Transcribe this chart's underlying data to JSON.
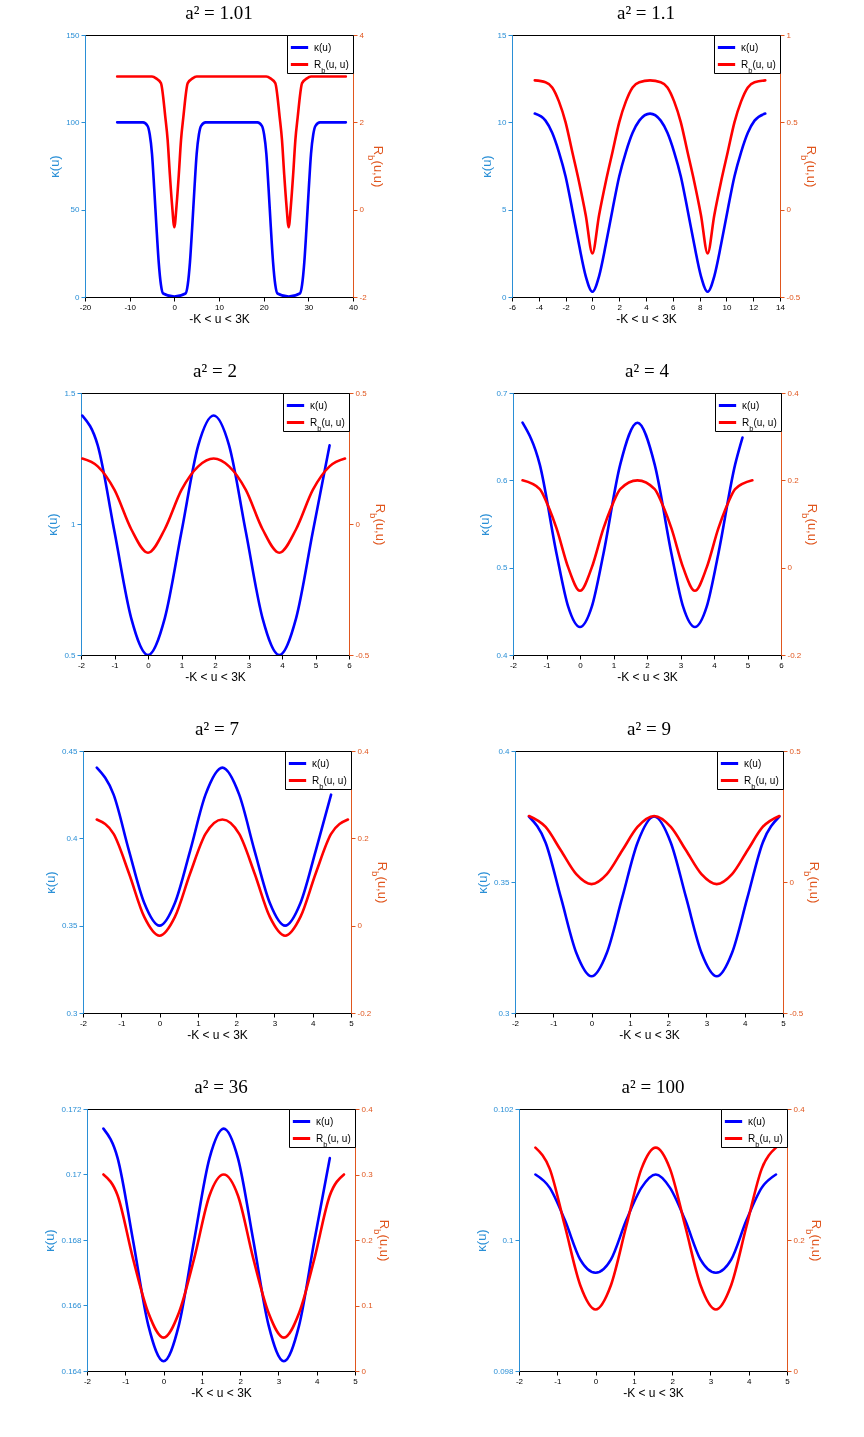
{
  "chart_data": [
    {
      "type": "line",
      "title": "a² = 1.01",
      "xlabel": "-K < u < 3K",
      "ylabel": "κ(u)",
      "y2label": "R$_{b}$(u,u)",
      "xlim": [
        -20,
        40
      ],
      "xticks": [
        -20,
        -10,
        0,
        10,
        20,
        30,
        40
      ],
      "ylim": [
        0,
        150
      ],
      "yticks": [
        0,
        50,
        100,
        150
      ],
      "y2lim": [
        -2,
        4
      ],
      "y2ticks": [
        -2,
        0,
        2,
        4
      ],
      "legend": "top right",
      "series": [
        {
          "name": "κ(u)",
          "color": "#0000ff",
          "x": [
            -12.8,
            -7,
            -6,
            -5.5,
            -5,
            -4.5,
            -4,
            -3.5,
            -3,
            -2.5,
            0,
            2.5,
            3,
            3.5,
            4,
            4.5,
            5,
            5.5,
            6,
            7,
            12.8,
            18.6,
            19.6,
            20.1,
            20.6,
            21.1,
            21.6,
            22.1,
            22.6,
            23.1,
            25.6,
            28.1,
            28.6,
            29.1,
            29.6,
            30.1,
            30.6,
            31.1,
            31.6,
            32.6,
            38.4
          ],
          "values": [
            100,
            100,
            98,
            93,
            82,
            62,
            40,
            20,
            7,
            2,
            0.2,
            2,
            7,
            20,
            40,
            62,
            82,
            93,
            98,
            100,
            100,
            100,
            98,
            93,
            82,
            62,
            40,
            20,
            7,
            2,
            0.2,
            2,
            7,
            20,
            40,
            62,
            82,
            93,
            98,
            100,
            100
          ]
        },
        {
          "name": "R$_{b}$(u, u)",
          "color": "#ff0000",
          "axis": "y2",
          "x": [
            -12.8,
            -5,
            -4,
            -3,
            -2,
            -1.5,
            -1,
            -0.5,
            0,
            0.5,
            1,
            1.5,
            2,
            3,
            4,
            5,
            12.8,
            20.6,
            21.6,
            22.6,
            23.6,
            24.1,
            24.6,
            25.1,
            25.6,
            26.1,
            26.6,
            27.1,
            27.6,
            28.6,
            29.6,
            30.6,
            38.4
          ],
          "values": [
            3.05,
            3.05,
            3.0,
            2.9,
            2.1,
            1.6,
            0.8,
            0.1,
            -0.4,
            0.1,
            0.8,
            1.6,
            2.1,
            2.9,
            3.0,
            3.05,
            3.05,
            3.05,
            3.0,
            2.9,
            2.1,
            1.6,
            0.8,
            0.1,
            -0.4,
            0.1,
            0.8,
            1.6,
            2.1,
            2.9,
            3.0,
            3.05,
            3.05
          ]
        }
      ]
    },
    {
      "type": "line",
      "title": "a² = 1.1",
      "xlabel": "-K < u < 3K",
      "ylabel": "κ(u)",
      "y2label": "R$_{b}$(u,u)",
      "xlim": [
        -6,
        14
      ],
      "xticks": [
        -6,
        -4,
        -2,
        0,
        2,
        4,
        6,
        8,
        10,
        12,
        14
      ],
      "ylim": [
        0,
        15
      ],
      "yticks": [
        0,
        5,
        10,
        15
      ],
      "y2lim": [
        -0.5,
        1
      ],
      "y2ticks": [
        -0.5,
        0,
        0.5,
        1
      ],
      "legend": "top right",
      "series": [
        {
          "name": "κ(u)",
          "color": "#0000ff",
          "x": [
            -4.3,
            -3.5,
            -3,
            -2.5,
            -2,
            -1.5,
            -1,
            -0.5,
            0,
            0.5,
            1,
            1.5,
            2,
            2.5,
            3,
            3.5,
            4.3,
            5.1,
            5.6,
            6.1,
            6.6,
            7.1,
            7.6,
            8.1,
            8.6,
            9.1,
            9.6,
            10.1,
            10.6,
            11.1,
            11.6,
            12.1,
            12.9
          ],
          "values": [
            10.5,
            10.1,
            9.4,
            8.3,
            6.9,
            5.0,
            3.0,
            1.2,
            0.3,
            1.2,
            3.0,
            5.0,
            6.9,
            8.3,
            9.4,
            10.1,
            10.5,
            10.1,
            9.4,
            8.3,
            6.9,
            5.0,
            3.0,
            1.2,
            0.3,
            1.2,
            3.0,
            5.0,
            6.9,
            8.3,
            9.4,
            10.1,
            10.5
          ]
        },
        {
          "name": "R$_{b}$(u, u)",
          "color": "#ff0000",
          "axis": "y2",
          "x": [
            -4.3,
            -3.5,
            -3,
            -2.5,
            -2,
            -1.5,
            -1,
            -0.5,
            0,
            0.5,
            1,
            1.5,
            2,
            2.5,
            3,
            3.5,
            4.3,
            5.1,
            5.6,
            6.1,
            6.6,
            7.1,
            7.6,
            8.1,
            8.6,
            9.1,
            9.6,
            10.1,
            10.6,
            11.1,
            11.6,
            12.1,
            12.9
          ],
          "values": [
            0.74,
            0.73,
            0.7,
            0.62,
            0.5,
            0.33,
            0.16,
            -0.03,
            -0.25,
            -0.03,
            0.16,
            0.33,
            0.5,
            0.62,
            0.7,
            0.73,
            0.74,
            0.73,
            0.7,
            0.62,
            0.5,
            0.33,
            0.16,
            -0.03,
            -0.25,
            -0.03,
            0.16,
            0.33,
            0.5,
            0.62,
            0.7,
            0.73,
            0.74
          ]
        }
      ]
    },
    {
      "type": "line",
      "title": "a² = 2",
      "xlabel": "-K < u < 3K",
      "ylabel": "κ(u)",
      "y2label": "R$_{b}$(u,u)",
      "xlim": [
        -2,
        6
      ],
      "xticks": [
        -2,
        -1,
        0,
        1,
        2,
        3,
        4,
        5,
        6
      ],
      "ylim": [
        0.5,
        1.5
      ],
      "yticks": [
        0.5,
        1,
        1.5
      ],
      "y2lim": [
        -0.5,
        0.5
      ],
      "y2ticks": [
        -0.5,
        0,
        0.5
      ],
      "legend": "top right",
      "series": [
        {
          "name": "κ(u)",
          "color": "#0000ff",
          "x": [
            -1.96,
            -1.5,
            -1,
            -0.5,
            0,
            0.5,
            1,
            1.5,
            1.96,
            2.42,
            2.92,
            3.42,
            3.92,
            4.42,
            4.92,
            5.42
          ],
          "values": [
            1.414,
            1.3,
            0.97,
            0.64,
            0.5,
            0.64,
            0.97,
            1.3,
            1.414,
            1.3,
            0.97,
            0.64,
            0.5,
            0.64,
            0.97,
            1.3
          ]
        },
        {
          "name": "R$_{b}$(u, u)",
          "color": "#ff0000",
          "axis": "y2",
          "x": [
            -1.96,
            -1.5,
            -1,
            -0.5,
            0,
            0.5,
            1,
            1.5,
            1.96,
            2.42,
            2.92,
            3.42,
            3.92,
            4.42,
            4.92,
            5.42,
            5.88
          ],
          "values": [
            0.25,
            0.22,
            0.13,
            -0.02,
            -0.11,
            -0.02,
            0.13,
            0.22,
            0.25,
            0.22,
            0.13,
            -0.02,
            -0.11,
            -0.02,
            0.13,
            0.22,
            0.25
          ]
        }
      ]
    },
    {
      "type": "line",
      "title": "a² = 4",
      "xlabel": "-K < u < 3K",
      "ylabel": "κ(u)",
      "y2label": "R$_{b}$(u,u)",
      "xlim": [
        -2,
        6
      ],
      "xticks": [
        -2,
        -1,
        0,
        1,
        2,
        3,
        4,
        5,
        6
      ],
      "ylim": [
        0.4,
        0.7
      ],
      "yticks": [
        0.4,
        0.5,
        0.6,
        0.7
      ],
      "y2lim": [
        -0.2,
        0.4
      ],
      "y2ticks": [
        -0.2,
        0,
        0.2,
        0.4
      ],
      "legend": "top right",
      "series": [
        {
          "name": "κ(u)",
          "color": "#0000ff",
          "x": [
            -1.715,
            -1.2,
            -0.7,
            -0.35,
            0,
            0.35,
            0.7,
            1.2,
            1.715,
            2.23,
            2.73,
            3.08,
            3.43,
            3.78,
            4.13,
            4.63,
            4.85
          ],
          "values": [
            0.666,
            0.618,
            0.516,
            0.455,
            0.432,
            0.455,
            0.516,
            0.618,
            0.666,
            0.618,
            0.516,
            0.455,
            0.432,
            0.455,
            0.516,
            0.618,
            0.649
          ]
        },
        {
          "name": "R$_{b}$(u, u)",
          "color": "#ff0000",
          "axis": "y2",
          "x": [
            -1.715,
            -1.2,
            -1,
            -0.7,
            -0.35,
            0,
            0.35,
            0.7,
            1,
            1.2,
            1.715,
            2.23,
            2.43,
            2.73,
            3.08,
            3.43,
            3.78,
            4.13,
            4.43,
            4.63,
            5.145
          ],
          "values": [
            0.2,
            0.18,
            0.15,
            0.09,
            0,
            -0.053,
            0,
            0.09,
            0.15,
            0.18,
            0.2,
            0.18,
            0.15,
            0.09,
            0,
            -0.053,
            0,
            0.09,
            0.15,
            0.18,
            0.2
          ]
        }
      ]
    },
    {
      "type": "line",
      "title": "a² = 7",
      "xlabel": "-K < u < 3K",
      "ylabel": "κ(u)",
      "y2label": "R$_{b}$(u,u)",
      "xlim": [
        -2,
        5
      ],
      "xticks": [
        -2,
        -1,
        0,
        1,
        2,
        3,
        4,
        5
      ],
      "ylim": [
        0.3,
        0.45
      ],
      "yticks": [
        0.3,
        0.35,
        0.4,
        0.45
      ],
      "y2lim": [
        -0.2,
        0.4
      ],
      "y2ticks": [
        -0.2,
        0,
        0.2,
        0.4
      ],
      "legend": "top right",
      "series": [
        {
          "name": "κ(u)",
          "color": "#0000ff",
          "x": [
            -1.64,
            -1.2,
            -0.8,
            -0.4,
            0,
            0.4,
            0.8,
            1.2,
            1.64,
            2.08,
            2.48,
            2.88,
            3.28,
            3.68,
            4.08,
            4.48
          ],
          "values": [
            0.4405,
            0.425,
            0.393,
            0.363,
            0.35,
            0.363,
            0.393,
            0.425,
            0.4405,
            0.425,
            0.393,
            0.363,
            0.35,
            0.363,
            0.393,
            0.425
          ]
        },
        {
          "name": "R$_{b}$(u, u)",
          "color": "#ff0000",
          "axis": "y2",
          "x": [
            -1.64,
            -1.2,
            -0.8,
            -0.4,
            0,
            0.4,
            0.8,
            1.2,
            1.64,
            2.08,
            2.48,
            2.88,
            3.28,
            3.68,
            4.08,
            4.48,
            4.92
          ],
          "values": [
            0.243,
            0.21,
            0.12,
            0.02,
            -0.023,
            0.02,
            0.12,
            0.21,
            0.243,
            0.21,
            0.12,
            0.02,
            -0.023,
            0.02,
            0.12,
            0.21,
            0.243
          ]
        }
      ]
    },
    {
      "type": "line",
      "title": "a² = 9",
      "xlabel": "-K < u < 3K",
      "ylabel": "κ(u)",
      "y2label": "R$_{b}$(u,u)",
      "xlim": [
        -2,
        5
      ],
      "xticks": [
        -2,
        -1,
        0,
        1,
        2,
        3,
        4,
        5
      ],
      "ylim": [
        0.3,
        0.4
      ],
      "yticks": [
        0.3,
        0.35,
        0.4
      ],
      "y2lim": [
        -0.5,
        0.5
      ],
      "y2ticks": [
        -0.5,
        0,
        0.5
      ],
      "legend": "top right",
      "series": [
        {
          "name": "κ(u)",
          "color": "#0000ff",
          "x": [
            -1.635,
            -1.2,
            -0.8,
            -0.4,
            0,
            0.4,
            0.8,
            1.2,
            1.635,
            2.07,
            2.47,
            2.87,
            3.27,
            3.67,
            4.07,
            4.47,
            4.905
          ],
          "values": [
            0.375,
            0.365,
            0.344,
            0.323,
            0.314,
            0.323,
            0.344,
            0.365,
            0.375,
            0.365,
            0.344,
            0.323,
            0.314,
            0.323,
            0.344,
            0.365,
            0.375
          ]
        },
        {
          "name": "R$_{b}$(u, u)",
          "color": "#ff0000",
          "axis": "y2",
          "x": [
            -1.635,
            -1.2,
            -0.8,
            -0.4,
            0,
            0.4,
            0.8,
            1.2,
            1.635,
            2.07,
            2.47,
            2.87,
            3.27,
            3.67,
            4.07,
            4.47,
            4.905
          ],
          "values": [
            0.252,
            0.21,
            0.12,
            0.03,
            -0.008,
            0.03,
            0.12,
            0.21,
            0.252,
            0.21,
            0.12,
            0.03,
            -0.008,
            0.03,
            0.12,
            0.21,
            0.252
          ]
        }
      ]
    },
    {
      "type": "line",
      "title": "a² = 36",
      "xlabel": "-K < u < 3K",
      "ylabel": "κ(u)",
      "y2label": "R$_{b}$(u,u)",
      "xlim": [
        -2,
        5
      ],
      "xticks": [
        -2,
        -1,
        0,
        1,
        2,
        3,
        4,
        5
      ],
      "ylim": [
        0.164,
        0.172
      ],
      "yticks": [
        0.164,
        0.166,
        0.168,
        0.17,
        0.172
      ],
      "y2lim": [
        0,
        0.4
      ],
      "y2ticks": [
        0,
        0.1,
        0.2,
        0.3,
        0.4
      ],
      "legend": "top right",
      "series": [
        {
          "name": "κ(u)",
          "color": "#0000ff",
          "x": [
            -1.571,
            -1.2,
            -0.8,
            -0.4,
            0,
            0.4,
            0.8,
            1.2,
            1.571,
            1.942,
            2.342,
            2.742,
            3.142,
            3.542,
            3.942,
            4.342
          ],
          "values": [
            0.1714,
            0.1705,
            0.168,
            0.1654,
            0.1643,
            0.1654,
            0.168,
            0.1705,
            0.1714,
            0.1705,
            0.168,
            0.1654,
            0.1643,
            0.1654,
            0.168,
            0.1705
          ]
        },
        {
          "name": "R$_{b}$(u, u)",
          "color": "#ff0000",
          "axis": "y2",
          "x": [
            -1.571,
            -1.2,
            -0.8,
            -0.4,
            0,
            0.4,
            0.8,
            1.2,
            1.571,
            1.942,
            2.342,
            2.742,
            3.142,
            3.542,
            3.942,
            4.342,
            4.712
          ],
          "values": [
            0.3,
            0.268,
            0.172,
            0.089,
            0.051,
            0.089,
            0.172,
            0.268,
            0.3,
            0.268,
            0.172,
            0.089,
            0.051,
            0.089,
            0.172,
            0.268,
            0.3
          ]
        }
      ]
    },
    {
      "type": "line",
      "title": "a² = 100",
      "xlabel": "-K < u < 3K",
      "ylabel": "κ(u)",
      "y2label": "R$_{b}$(u,u)",
      "xlim": [
        -2,
        5
      ],
      "xticks": [
        -2,
        -1,
        0,
        1,
        2,
        3,
        4,
        5
      ],
      "ylim": [
        0.098,
        0.102
      ],
      "yticks": [
        0.098,
        0.1,
        0.102
      ],
      "y2lim": [
        0,
        0.4
      ],
      "y2ticks": [
        0,
        0.2,
        0.4
      ],
      "legend": "top right",
      "series": [
        {
          "name": "κ(u)",
          "color": "#0000ff",
          "x": [
            -1.571,
            -1.2,
            -0.8,
            -0.4,
            0,
            0.4,
            0.8,
            1.2,
            1.571,
            1.942,
            2.342,
            2.742,
            3.142,
            3.542,
            3.942,
            4.342,
            4.712
          ],
          "values": [
            0.101,
            0.1008,
            0.1003,
            0.0997,
            0.0995,
            0.0997,
            0.1003,
            0.1008,
            0.101,
            0.1008,
            0.1003,
            0.0997,
            0.0995,
            0.0997,
            0.1003,
            0.1008,
            0.101
          ]
        },
        {
          "name": "R$_{b}$(u, u)",
          "color": "#ff0000",
          "axis": "y2",
          "x": [
            -1.571,
            -1.2,
            -0.8,
            -0.4,
            0,
            0.4,
            0.8,
            1.2,
            1.571,
            1.942,
            2.342,
            2.742,
            3.142,
            3.542,
            3.942,
            4.342,
            4.712
          ],
          "values": [
            0.341,
            0.309,
            0.221,
            0.131,
            0.094,
            0.131,
            0.221,
            0.309,
            0.341,
            0.309,
            0.221,
            0.131,
            0.094,
            0.131,
            0.221,
            0.309,
            0.341
          ]
        }
      ]
    }
  ]
}
